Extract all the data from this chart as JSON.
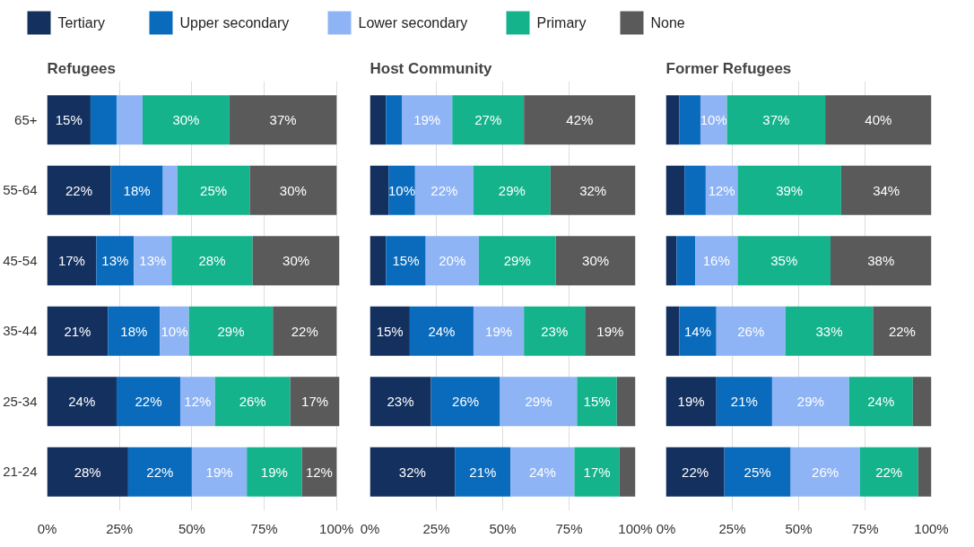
{
  "chart_data": [
    {
      "type": "bar",
      "orientation": "horizontal",
      "stacked": true,
      "title": "Refugees",
      "categories": [
        "65+",
        "55-64",
        "45-54",
        "35-44",
        "25-34",
        "21-24"
      ],
      "xlim": [
        0,
        101
      ],
      "xticks": [
        {
          "value": 0,
          "label": "0%"
        },
        {
          "value": 25,
          "label": "25%"
        },
        {
          "value": 50,
          "label": "50%"
        },
        {
          "value": 75,
          "label": "75%"
        },
        {
          "value": 100,
          "label": "100%"
        }
      ],
      "grid": "x",
      "legend": "top",
      "series": [
        {
          "name": "Tertiary",
          "color": "#14305e",
          "values": [
            15,
            22,
            17,
            21,
            24,
            28
          ],
          "value_labels": [
            "15%",
            "22%",
            "17%",
            "21%",
            "24%",
            "28%"
          ]
        },
        {
          "name": "Upper secondary",
          "color": "#0a6bbd",
          "values": [
            9,
            18,
            13,
            18,
            22,
            22
          ],
          "value_labels": [
            null,
            "18%",
            "13%",
            "18%",
            "22%",
            "22%"
          ]
        },
        {
          "name": "Lower secondary",
          "color": "#8fb4f5",
          "values": [
            9,
            5,
            13,
            10,
            12,
            19
          ],
          "value_labels": [
            null,
            null,
            "13%",
            "10%",
            "12%",
            "19%"
          ]
        },
        {
          "name": "Primary",
          "color": "#14b38c",
          "values": [
            30,
            25,
            28,
            29,
            26,
            19
          ],
          "value_labels": [
            "30%",
            "25%",
            "28%",
            "29%",
            "26%",
            "19%"
          ]
        },
        {
          "name": "None",
          "color": "#5a5a5a",
          "values": [
            37,
            30,
            30,
            22,
            17,
            12
          ],
          "value_labels": [
            "37%",
            "30%",
            "30%",
            "22%",
            "17%",
            "12%"
          ]
        }
      ]
    },
    {
      "type": "bar",
      "orientation": "horizontal",
      "stacked": true,
      "title": "Host Community",
      "categories": [
        null,
        null,
        null,
        null,
        null,
        null
      ],
      "xlim": [
        0,
        100
      ],
      "xticks": [
        {
          "value": 0,
          "label": "0%"
        },
        {
          "value": 25,
          "label": "25%"
        },
        {
          "value": 50,
          "label": "50%"
        },
        {
          "value": 75,
          "label": "75%"
        },
        {
          "value": 100,
          "label": "100%"
        }
      ],
      "grid": "x",
      "tick_labels": "x",
      "series": [
        {
          "color": "#14305e",
          "values": [
            6,
            7,
            6,
            15,
            23,
            32
          ],
          "value_labels": [
            null,
            null,
            null,
            "15%",
            "23%",
            "32%"
          ]
        },
        {
          "color": "#0a6bbd",
          "values": [
            6,
            10,
            15,
            24,
            26,
            21
          ],
          "value_labels": [
            null,
            "10%",
            "15%",
            "24%",
            "26%",
            "21%"
          ]
        },
        {
          "color": "#8fb4f5",
          "values": [
            19,
            22,
            20,
            19,
            29,
            24
          ],
          "value_labels": [
            "19%",
            "22%",
            "20%",
            "19%",
            "29%",
            "24%"
          ]
        },
        {
          "color": "#14b38c",
          "values": [
            27,
            29,
            29,
            23,
            15,
            17
          ],
          "value_labels": [
            "27%",
            "29%",
            "29%",
            "23%",
            "15%",
            "17%"
          ]
        },
        {
          "color": "#5a5a5a",
          "values": [
            42,
            32,
            30,
            19,
            7,
            6
          ],
          "value_labels": [
            "42%",
            "32%",
            "30%",
            "19%",
            null,
            null
          ]
        }
      ]
    },
    {
      "type": "bar",
      "orientation": "horizontal",
      "stacked": true,
      "title": "Former Refugees",
      "categories": [
        null,
        null,
        null,
        null,
        null,
        null
      ],
      "xlim": [
        0,
        100
      ],
      "xticks": [
        {
          "value": 0,
          "label": "0%"
        },
        {
          "value": 25,
          "label": "25%"
        },
        {
          "value": 50,
          "label": "50%"
        },
        {
          "value": 75,
          "label": "75%"
        },
        {
          "value": 100,
          "label": "100%"
        }
      ],
      "grid": "x",
      "tick_labels": "x",
      "series": [
        {
          "color": "#14305e",
          "values": [
            5,
            7,
            4,
            5,
            19,
            22
          ],
          "value_labels": [
            null,
            null,
            null,
            null,
            "19%",
            "22%"
          ]
        },
        {
          "color": "#0a6bbd",
          "values": [
            8,
            8,
            7,
            14,
            21,
            25
          ],
          "value_labels": [
            null,
            null,
            null,
            "14%",
            "21%",
            "25%"
          ]
        },
        {
          "color": "#8fb4f5",
          "values": [
            10,
            12,
            16,
            26,
            29,
            26
          ],
          "value_labels": [
            "10%",
            "12%",
            "16%",
            "26%",
            "29%",
            "26%"
          ]
        },
        {
          "color": "#14b38c",
          "values": [
            37,
            39,
            35,
            33,
            24,
            22
          ],
          "value_labels": [
            "37%",
            "39%",
            "35%",
            "33%",
            "24%",
            "22%"
          ]
        },
        {
          "color": "#5a5a5a",
          "values": [
            40,
            34,
            38,
            22,
            7,
            5
          ],
          "value_labels": [
            "40%",
            "34%",
            "38%",
            "22%",
            null,
            null
          ]
        }
      ]
    }
  ]
}
